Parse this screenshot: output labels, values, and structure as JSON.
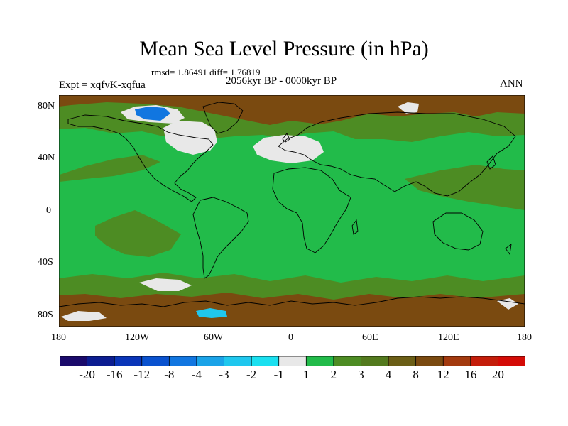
{
  "title": "Mean Sea Level Pressure (in hPa)",
  "stats": {
    "text": "rmsd= 1.86491  diff= 1.76819"
  },
  "experiment": "Expt = xqfvK-xqfua",
  "period": "2056kyr BP - 0000kyr BP",
  "season": "ANN",
  "lat_labels": [
    "80N",
    "40N",
    "0",
    "40S",
    "80S"
  ],
  "lon_labels": [
    "180",
    "120W",
    "60W",
    "0",
    "60E",
    "120E",
    "180"
  ],
  "colorbar": {
    "colors": [
      "#1a0a6b",
      "#0c1d91",
      "#0a35b8",
      "#0a52cf",
      "#1176e0",
      "#1aa3e8",
      "#1fc7ee",
      "#1ae0f0",
      "#e8e8e8",
      "#22bb4a",
      "#4d8c23",
      "#537a1e",
      "#6b5e16",
      "#7a4a10",
      "#a33a0e",
      "#c41d0a",
      "#d40b06"
    ],
    "labels": [
      "-20",
      "-16",
      "-12",
      "-8",
      "-4",
      "-3",
      "-2",
      "-1",
      "1",
      "2",
      "3",
      "4",
      "8",
      "12",
      "16",
      "20"
    ]
  },
  "colors": {
    "ocean_base": "#22bb4a",
    "olive": "#4d8c23",
    "brown": "#7a4a10",
    "light": "#e8e8e8",
    "cyan": "#1fc7ee",
    "blue": "#1176e0"
  }
}
